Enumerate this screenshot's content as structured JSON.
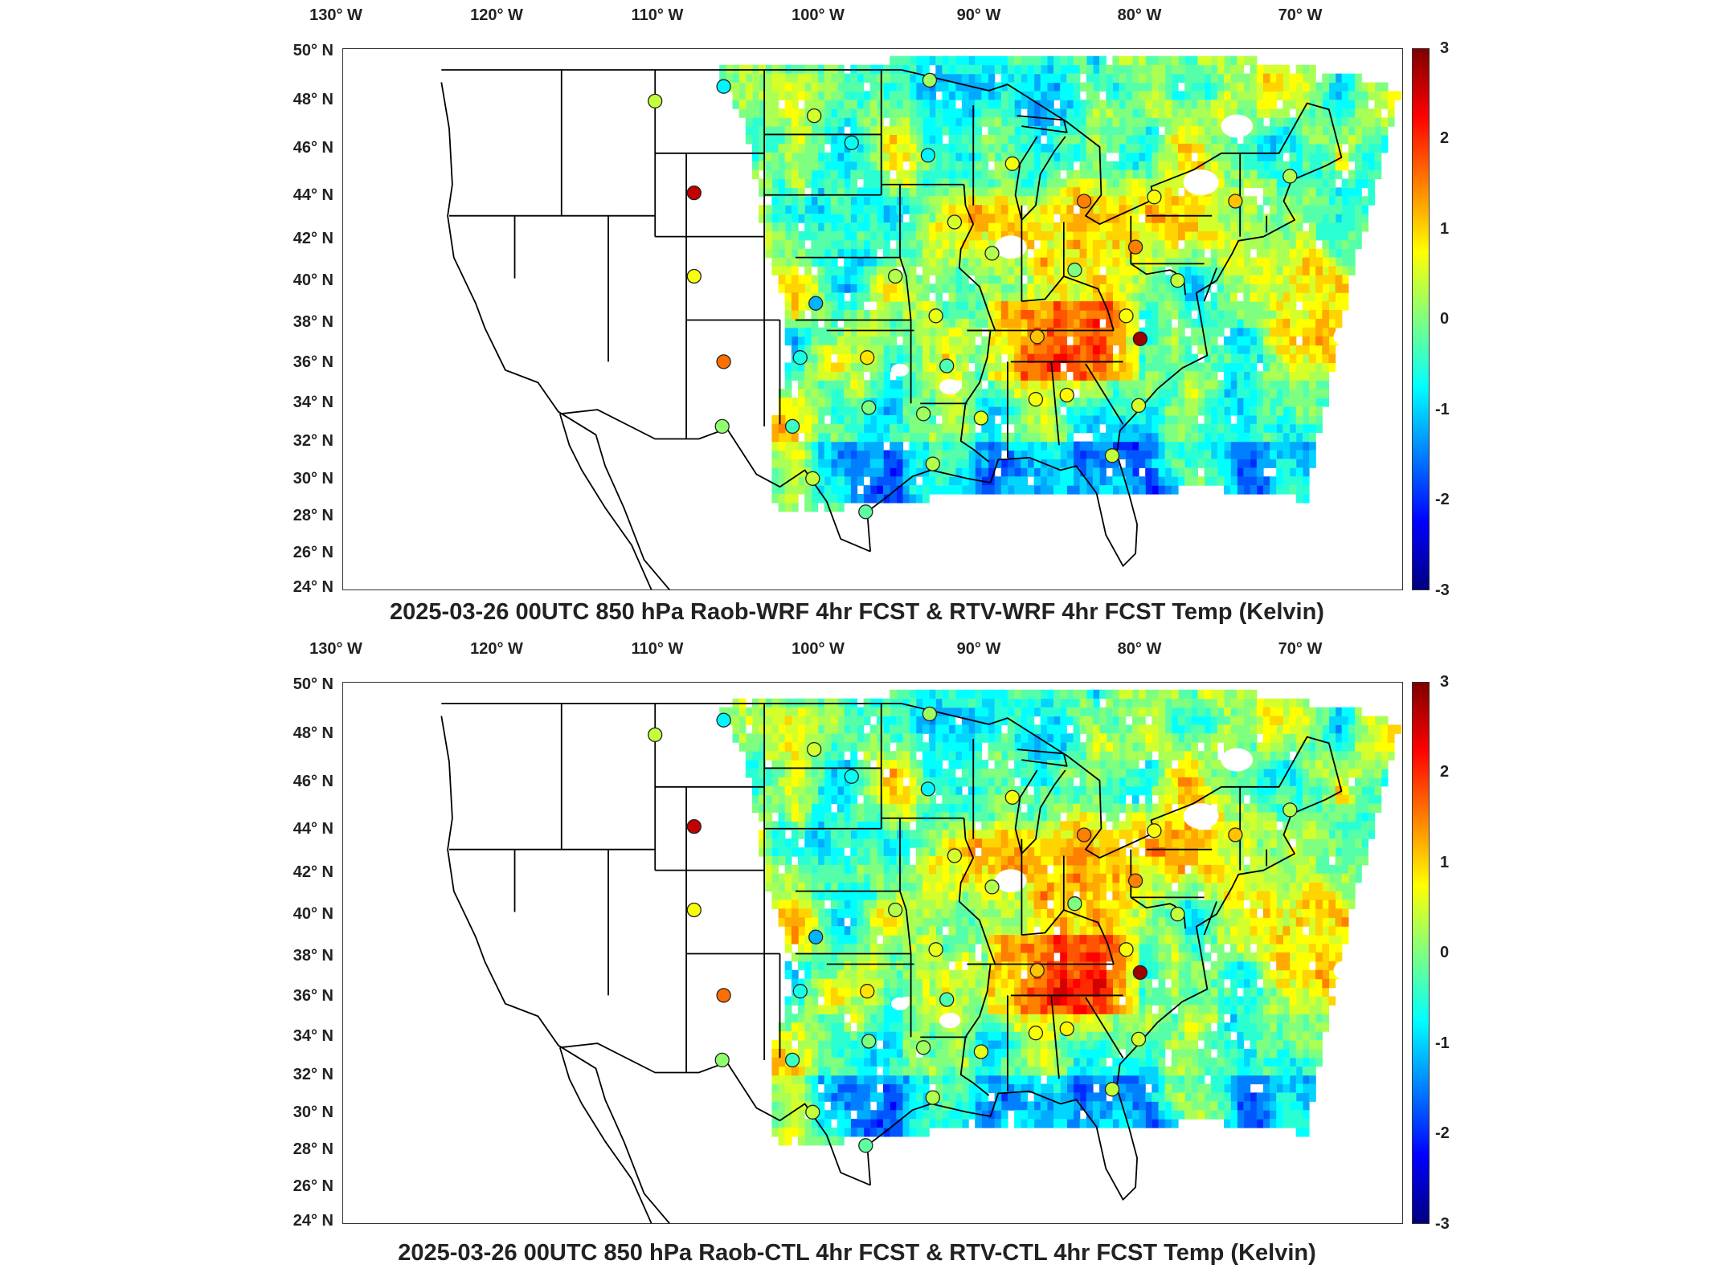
{
  "panels": [
    {
      "id": "top",
      "title": "2025-03-26 00UTC 850 hPa Raob-WRF 4hr FCST & RTV-WRF 4hr FCST Temp (Kelvin)"
    },
    {
      "id": "bottom",
      "title": "2025-03-26 00UTC 850 hPa Raob-CTL 4hr FCST & RTV-CTL 4hr FCST Temp (Kelvin)"
    }
  ],
  "lon_ticks": [
    "130° W",
    "120° W",
    "110° W",
    "100° W",
    "90° W",
    "80° W",
    "70° W"
  ],
  "lat_ticks": [
    "50° N",
    "48° N",
    "46° N",
    "44° N",
    "42° N",
    "40° N",
    "38° N",
    "36° N",
    "34° N",
    "32° N",
    "30° N",
    "28° N",
    "26° N",
    "24° N"
  ],
  "colorbar": {
    "ticks": [
      "3",
      "2",
      "1",
      "0",
      "-1",
      "-2",
      "-3"
    ],
    "range": [
      -3,
      3
    ],
    "colormap": "jet",
    "colors": [
      "#00007f",
      "#0000ff",
      "#007fff",
      "#00ffff",
      "#7fff7f",
      "#ffff00",
      "#ff7f00",
      "#ff0000",
      "#7f0000"
    ]
  },
  "chart_data": {
    "type": "scatter",
    "x_domain": [
      -131,
      -63
    ],
    "y_domain": [
      24,
      50
    ],
    "raob_stations": [
      {
        "lon": -111.0,
        "lat": 47.5,
        "top": 0.4,
        "bottom": 0.4
      },
      {
        "lon": -106.6,
        "lat": 48.2,
        "top": -0.8,
        "bottom": -0.8
      },
      {
        "lon": -108.5,
        "lat": 43.1,
        "top": 2.6,
        "bottom": 2.6
      },
      {
        "lon": -108.5,
        "lat": 39.1,
        "top": 0.7,
        "bottom": 0.7
      },
      {
        "lon": -106.6,
        "lat": 35.0,
        "top": 1.6,
        "bottom": 1.6
      },
      {
        "lon": -106.7,
        "lat": 31.9,
        "top": 0.1,
        "bottom": 0.1
      },
      {
        "lon": -100.8,
        "lat": 46.8,
        "top": 0.5,
        "bottom": 0.5
      },
      {
        "lon": -98.4,
        "lat": 45.5,
        "top": -0.7,
        "bottom": -0.7
      },
      {
        "lon": -93.4,
        "lat": 48.5,
        "top": 0.2,
        "bottom": 0.2
      },
      {
        "lon": -93.5,
        "lat": 44.9,
        "top": -0.8,
        "bottom": -0.8
      },
      {
        "lon": -88.1,
        "lat": 44.5,
        "top": 0.7,
        "bottom": 0.7
      },
      {
        "lon": -83.5,
        "lat": 42.7,
        "top": 1.5,
        "bottom": 1.5
      },
      {
        "lon": -79.0,
        "lat": 42.9,
        "top": 0.7,
        "bottom": 0.7
      },
      {
        "lon": -73.8,
        "lat": 42.7,
        "top": 1.1,
        "bottom": 1.1
      },
      {
        "lon": -70.3,
        "lat": 43.9,
        "top": 0.3,
        "bottom": 0.3
      },
      {
        "lon": -91.8,
        "lat": 41.7,
        "top": 0.5,
        "bottom": 0.5
      },
      {
        "lon": -89.4,
        "lat": 40.2,
        "top": 0.3,
        "bottom": 0.3
      },
      {
        "lon": -80.2,
        "lat": 40.5,
        "top": 1.5,
        "bottom": 1.5
      },
      {
        "lon": -77.5,
        "lat": 38.9,
        "top": 0.4,
        "bottom": 0.4
      },
      {
        "lon": -84.1,
        "lat": 39.4,
        "top": 0.0,
        "bottom": 0.0
      },
      {
        "lon": -95.6,
        "lat": 39.1,
        "top": 0.3,
        "bottom": 0.3
      },
      {
        "lon": -100.7,
        "lat": 37.8,
        "top": -1.2,
        "bottom": -1.2
      },
      {
        "lon": -93.0,
        "lat": 37.2,
        "top": 0.6,
        "bottom": 0.6
      },
      {
        "lon": -80.8,
        "lat": 37.2,
        "top": 0.7,
        "bottom": 0.7
      },
      {
        "lon": -86.5,
        "lat": 36.2,
        "top": 1.1,
        "bottom": 1.1
      },
      {
        "lon": -79.9,
        "lat": 36.1,
        "top": 2.8,
        "bottom": 2.8
      },
      {
        "lon": -101.7,
        "lat": 35.2,
        "top": -0.6,
        "bottom": -0.6
      },
      {
        "lon": -97.4,
        "lat": 35.2,
        "top": 0.9,
        "bottom": 0.9
      },
      {
        "lon": -92.3,
        "lat": 34.8,
        "top": -0.3,
        "bottom": -0.3
      },
      {
        "lon": -86.6,
        "lat": 33.2,
        "top": 0.7,
        "bottom": 0.7
      },
      {
        "lon": -84.6,
        "lat": 33.4,
        "top": 0.8,
        "bottom": 0.8
      },
      {
        "lon": -80.0,
        "lat": 32.9,
        "top": 0.5,
        "bottom": 0.5
      },
      {
        "lon": -97.3,
        "lat": 32.8,
        "top": 0.0,
        "bottom": 0.0
      },
      {
        "lon": -93.8,
        "lat": 32.5,
        "top": 0.2,
        "bottom": 0.2
      },
      {
        "lon": -90.1,
        "lat": 32.3,
        "top": 0.6,
        "bottom": 0.6
      },
      {
        "lon": -102.2,
        "lat": 31.9,
        "top": -0.4,
        "bottom": -0.4
      },
      {
        "lon": -93.2,
        "lat": 30.1,
        "top": 0.3,
        "bottom": 0.3
      },
      {
        "lon": -81.7,
        "lat": 30.5,
        "top": 0.4,
        "bottom": 0.4
      },
      {
        "lon": -100.9,
        "lat": 29.4,
        "top": 0.4,
        "bottom": 0.4
      },
      {
        "lon": -97.5,
        "lat": 27.8,
        "top": -0.2,
        "bottom": -0.2
      }
    ]
  }
}
